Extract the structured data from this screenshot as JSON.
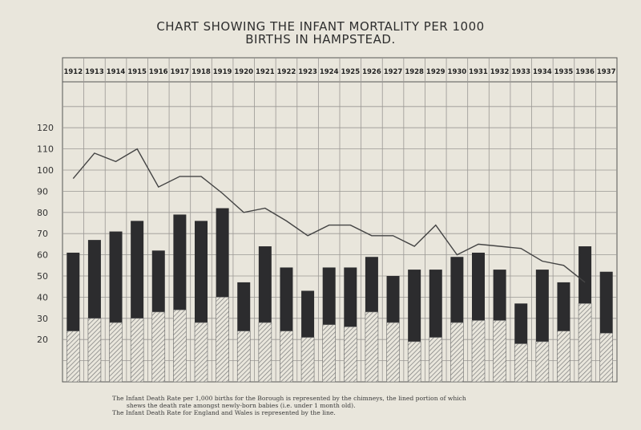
{
  "chart_data": {
    "type": "bar",
    "title_lines": [
      "CHART SHOWING THE INFANT MORTALITY PER 1000",
      "BIRTHS IN HAMPSTEAD."
    ],
    "categories": [
      "1912",
      "1913",
      "1914",
      "1915",
      "1916",
      "1917",
      "1918",
      "1919",
      "1920",
      "1921",
      "1922",
      "1923",
      "1924",
      "1925",
      "1926",
      "1927",
      "1928",
      "1929",
      "1930",
      "1931",
      "1932",
      "1933",
      "1934",
      "1935",
      "1936",
      "1937"
    ],
    "series": [
      {
        "name": "Infant Death Rate per 1,000 births (Hampstead)",
        "style": "chimney",
        "values": [
          61,
          67,
          71,
          76,
          62,
          79,
          76,
          82,
          47,
          64,
          54,
          43,
          54,
          54,
          59,
          50,
          53,
          53,
          59,
          61,
          53,
          37,
          53,
          47,
          64,
          52
        ]
      },
      {
        "name": "Death rate amongst newly-born babies (under 1 month old)",
        "style": "hatched",
        "values": [
          24,
          30,
          28,
          30,
          33,
          34,
          28,
          40,
          24,
          28,
          24,
          21,
          27,
          26,
          33,
          28,
          19,
          21,
          28,
          29,
          29,
          18,
          19,
          24,
          37,
          23
        ]
      },
      {
        "name": "Infant Death Rate for England and Wales",
        "style": "line",
        "values": [
          96,
          108,
          104,
          110,
          92,
          97,
          97,
          89,
          80,
          82,
          76,
          69,
          74,
          74,
          69,
          69,
          64,
          74,
          60,
          65,
          64,
          63,
          57,
          55,
          47,
          null
        ]
      }
    ],
    "ylim": [
      0,
      135
    ],
    "yticks": [
      20,
      30,
      40,
      50,
      60,
      70,
      80,
      90,
      100,
      110,
      120
    ],
    "xlabel": "",
    "ylabel": "",
    "colors": {
      "bar": "#2c2c2e",
      "hatch": "#7a7a7a",
      "line": "#444444",
      "grid": "#9a9894",
      "paper": "#e9e6dc"
    }
  },
  "footnote": {
    "line1": "The Infant Death Rate per 1,000 births for the Borough is represented by the chimneys, the lined portion of which",
    "line2": "shews the death rate amongst newly-born babies (i.e. under 1 month old).",
    "line3": "The Infant Death Rate for England and Wales is represented by the line."
  }
}
